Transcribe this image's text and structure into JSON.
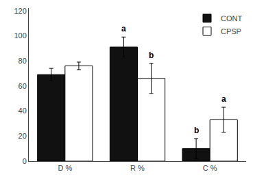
{
  "chart_data": {
    "type": "bar",
    "categories": [
      "D %",
      "R %",
      "C %"
    ],
    "series": [
      {
        "name": "CONT",
        "color": "#111111",
        "values": [
          69,
          91,
          10
        ],
        "errors": [
          5,
          8,
          8
        ]
      },
      {
        "name": "CPSP",
        "color": "#ffffff",
        "values": [
          76,
          66,
          33
        ],
        "errors": [
          3,
          12,
          10
        ]
      }
    ],
    "annotations": [
      {
        "text": "a",
        "category": "R %",
        "series": "CONT"
      },
      {
        "text": "b",
        "category": "C %",
        "series": "CONT"
      },
      {
        "text": "b",
        "category": "R %",
        "series": "CPSP"
      },
      {
        "text": "a",
        "category": "C %",
        "series": "CPSP"
      }
    ],
    "ylim": [
      0,
      122
    ],
    "yticks": [
      0,
      20,
      40,
      60,
      80,
      100,
      120
    ],
    "grid": false,
    "legend": "upper right"
  }
}
